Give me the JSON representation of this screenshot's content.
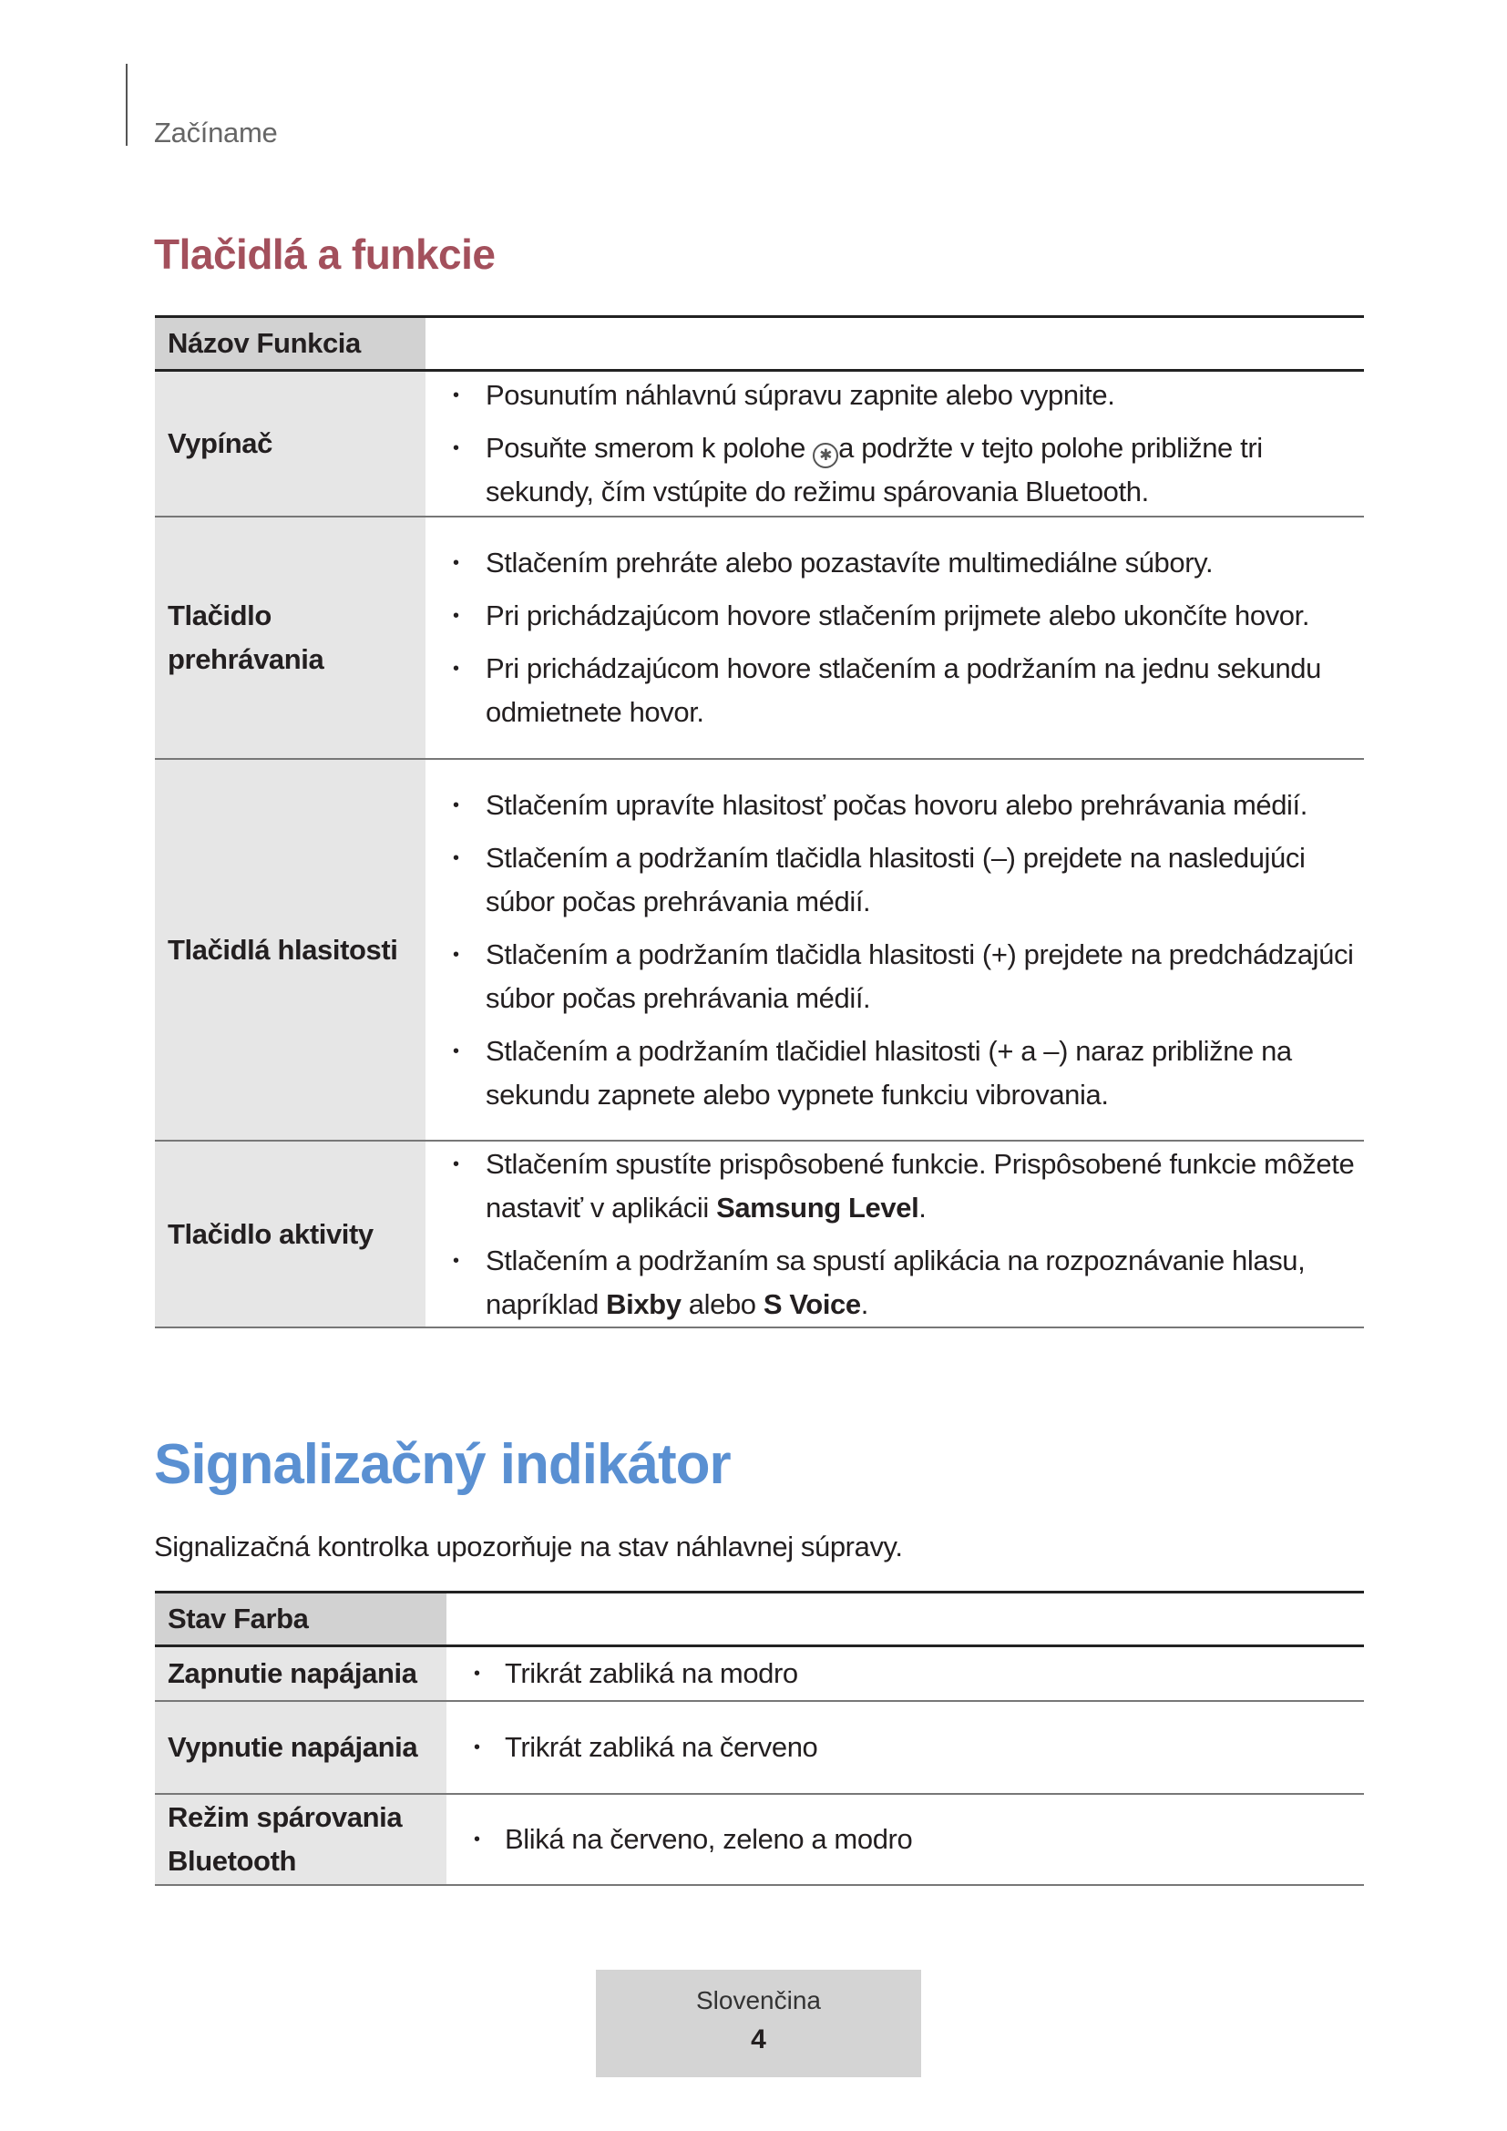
{
  "header": {
    "chapter": "Začíname"
  },
  "section1": {
    "title": "Tlačidlá a funkcie",
    "table": {
      "header": "Názov Funkcia",
      "rows": [
        {
          "name": "Vypínač",
          "items": [
            [
              {
                "t": "Posunutím náhlavnú súpravu zapnite alebo vypnite."
              }
            ],
            [
              {
                "t": "Posuňte smerom k polohe "
              },
              {
                "icon": "bluetooth-icon",
                "t": "✱"
              },
              {
                "t": "a podržte v tejto polohe približne tri sekundy, čím vstúpite do režimu spárovania Bluetooth."
              }
            ]
          ]
        },
        {
          "name": "Tlačidlo prehrávania",
          "items": [
            [
              {
                "t": "Stlačením prehráte alebo pozastavíte multimediálne súbory."
              }
            ],
            [
              {
                "t": "Pri prichádzajúcom hovore stlačením prijmete alebo ukončíte hovor."
              }
            ],
            [
              {
                "t": "Pri prichádzajúcom hovore stlačením a podržaním na jednu sekundu odmietnete hovor."
              }
            ]
          ]
        },
        {
          "name": "Tlačidlá hlasitosti",
          "items": [
            [
              {
                "t": "Stlačením upravíte hlasitosť počas hovoru alebo prehrávania médií."
              }
            ],
            [
              {
                "t": "Stlačením a podržaním tlačidla hlasitosti (–) prejdete na nasledujúci súbor počas prehrávania médií."
              }
            ],
            [
              {
                "t": "Stlačením a podržaním tlačidla hlasitosti (+) prejdete na predchádzajúci súbor počas prehrávania médií."
              }
            ],
            [
              {
                "t": "Stlačením a podržaním tlačidiel hlasitosti (+ a –) naraz približne na sekundu zapnete alebo vypnete funkciu vibrovania."
              }
            ]
          ]
        },
        {
          "name": "Tlačidlo aktivity",
          "items": [
            [
              {
                "t": "Stlačením spustíte prispôsobené funkcie. Prispôsobené funkcie môžete nastaviť v aplikácii "
              },
              {
                "t": "Samsung Level",
                "b": true
              },
              {
                "t": "."
              }
            ],
            [
              {
                "t": "Stlačením a podržaním sa spustí aplikácia na rozpoznávanie hlasu, napríklad "
              },
              {
                "t": "Bixby",
                "b": true
              },
              {
                "t": " alebo "
              },
              {
                "t": "S Voice",
                "b": true
              },
              {
                "t": "."
              }
            ]
          ]
        }
      ]
    }
  },
  "section2": {
    "title": "Signalizačný indikátor",
    "intro": "Signalizačná kontrolka upozorňuje na stav náhlavnej súpravy.",
    "table": {
      "header": "Stav Farba",
      "rows": [
        {
          "name": "Zapnutie napájania",
          "items": [
            [
              {
                "t": "Trikrát zabliká na modro"
              }
            ]
          ]
        },
        {
          "name": "Vypnutie napájania",
          "items": [
            [
              {
                "t": "Trikrát zabliká na červeno"
              }
            ]
          ]
        },
        {
          "name": "Režim spárovania Bluetooth",
          "items": [
            [
              {
                "t": "Bliká na červeno, zeleno a modro"
              }
            ]
          ]
        }
      ]
    }
  },
  "footer": {
    "language": "Slovenčina",
    "page": "4"
  },
  "colors": {
    "section1_title": "#a3505c",
    "section2_title": "#5a90d2",
    "header_cell": "#d2d2d2",
    "label_cell": "#e6e6e6"
  }
}
